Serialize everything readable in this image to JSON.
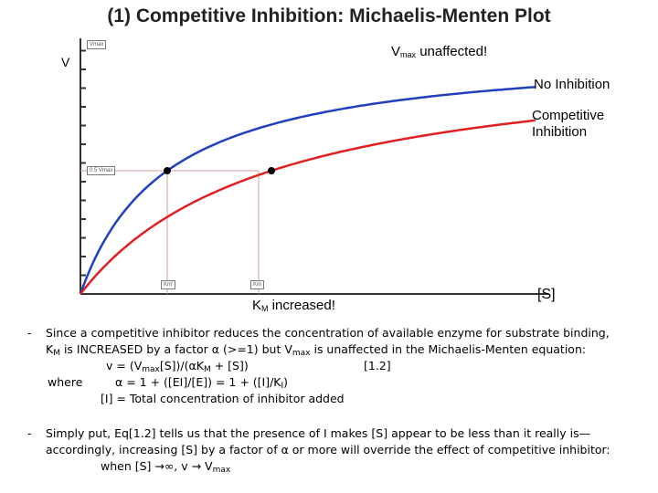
{
  "title": "(1) Competitive Inhibition: Michaelis-Menten Plot",
  "axes": {
    "y_label": "V",
    "x_label": "[S]"
  },
  "tags": {
    "vmax": "Vmax",
    "half_vmax": "0.5 Vmax",
    "km_app": "Km'",
    "km": "Km"
  },
  "annotations": {
    "vmax_prefix": "V",
    "vmax_sub": "max",
    "vmax_suffix": " unaffected!",
    "no_inhibition": "No Inhibition",
    "competitive_line1": "Competitive",
    "competitive_line2": "Inhibition",
    "km_prefix": "K",
    "km_sub": "M",
    "km_suffix": " increased!"
  },
  "colors": {
    "no_inhibition": "#2040c0",
    "competitive": "#e02020",
    "guide": "#d0a0a0",
    "axis": "#333333"
  },
  "chart_data": {
    "type": "line",
    "xlabel": "[S]",
    "ylabel": "V",
    "series": [
      {
        "name": "No Inhibition",
        "vmax": 1.0,
        "km": 1.0
      },
      {
        "name": "Competitive Inhibition",
        "vmax": 1.0,
        "km": 2.2
      }
    ],
    "points": [
      {
        "x": 1.0,
        "y": 0.5
      },
      {
        "x": 2.2,
        "y": 0.5
      }
    ]
  },
  "notes": {
    "p1_dash": "-",
    "p1_l1": "Since a competitive inhibitor reduces the concentration of available enzyme for substrate binding,",
    "p1_l2a": "K",
    "p1_l2b": "M",
    "p1_l2c": " is INCREASED by a factor α (>=1) but V",
    "p1_l2d": "max",
    "p1_l2e": " is unaffected in the Michaelis-Menten equation:",
    "eq_a": "v = (V",
    "eq_b": "max",
    "eq_c": "[S])/(αK",
    "eq_d": "M",
    "eq_e": " + [S])",
    "eq_ref": "[1.2]",
    "where": "where",
    "alpha_a": "α = 1 + ([EI]/[E]) = 1 + ([I]/K",
    "alpha_b": "I",
    "alpha_c": ")",
    "i_def": "[I] = Total concentration of inhibitor added",
    "p2_dash": "-",
    "p2_l1": "Simply put, Eq[1.2] tells us that the presence of I makes [S] appear to be less than it really is—",
    "p2_l2": "accordingly, increasing [S] by a factor of α or more will override the effect of competitive inhibitor:",
    "p2_l3a": "when [S] →∞, v → V",
    "p2_l3b": "max"
  }
}
